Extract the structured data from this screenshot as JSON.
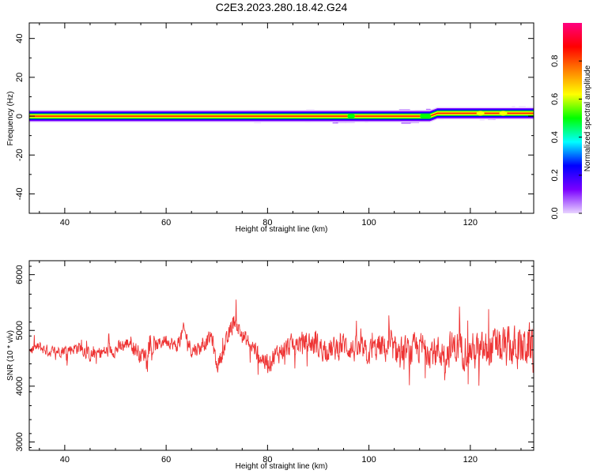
{
  "title": "C2E3.2023.280.18.42.G24",
  "chart_data": [
    {
      "type": "heatmap",
      "xlabel": "Height of straight line (km)",
      "ylabel": "Frequency (Hz)",
      "xlim": [
        33,
        132.5
      ],
      "ylim": [
        -50,
        48
      ],
      "xticks": [
        40,
        60,
        80,
        100,
        120
      ],
      "yticks": [
        -40,
        -20,
        0,
        20,
        40
      ],
      "grid": false,
      "colorbar": {
        "label": "Normalized spectral amplitude",
        "range": [
          0,
          1
        ],
        "ticks": [
          0.0,
          0.2,
          0.4,
          0.6,
          0.8
        ],
        "colormap": [
          "#e8d4ff",
          "#7a00ff",
          "#0000ff",
          "#00ffff",
          "#00ff00",
          "#ffff00",
          "#ff8000",
          "#ff0000",
          "#ff0080"
        ]
      },
      "ridge": {
        "description_points": [
          {
            "x": 33,
            "y": 0
          },
          {
            "x": 112,
            "y": 0
          },
          {
            "x": 113.5,
            "y": 1.5
          },
          {
            "x": 132.5,
            "y": 1.5
          }
        ]
      },
      "noise_regions": [
        {
          "x": [
            76,
            80
          ],
          "level": 0.25
        },
        {
          "x": [
            86,
            90
          ],
          "level": 0.2
        },
        {
          "x": [
            92,
            100
          ],
          "level": 0.55
        },
        {
          "x": [
            107,
            114
          ],
          "level": 0.6
        },
        {
          "x": [
            118,
            132.5
          ],
          "level": 0.35
        }
      ]
    },
    {
      "type": "line",
      "xlabel": "Height of straight line (km)",
      "ylabel": "SNR (10 * v/v)",
      "xlim": [
        33,
        132.5
      ],
      "ylim": [
        2850,
        6250
      ],
      "xticks": [
        40,
        60,
        80,
        100,
        120
      ],
      "yticks": [
        3000,
        4000,
        5000,
        6000
      ],
      "grid": false,
      "series": [
        {
          "color": "#ee3333",
          "x": [
            33,
            35,
            37,
            40,
            43,
            45,
            47,
            50,
            53,
            55,
            57,
            60,
            62,
            63.5,
            65,
            67,
            69,
            70,
            72,
            73.5,
            75,
            77,
            79,
            80,
            82,
            85,
            88,
            90,
            93,
            95,
            97,
            100,
            102,
            105,
            108,
            110,
            112,
            115,
            117,
            120,
            122,
            125,
            127,
            130,
            132.5
          ],
          "mean": [
            4650,
            4700,
            4620,
            4650,
            4700,
            4550,
            4600,
            4650,
            4800,
            4550,
            4650,
            4850,
            4700,
            5000,
            4650,
            4700,
            4900,
            4350,
            4800,
            5200,
            4900,
            4700,
            4500,
            4400,
            4600,
            4750,
            4800,
            4700,
            4650,
            4750,
            4650,
            4600,
            4700,
            4650,
            4600,
            4700,
            4650,
            4600,
            4700,
            4650,
            4600,
            4700,
            4650,
            4700,
            4750
          ],
          "spread": [
            200,
            250,
            250,
            250,
            300,
            300,
            300,
            300,
            350,
            350,
            300,
            300,
            300,
            350,
            350,
            300,
            350,
            350,
            400,
            400,
            400,
            400,
            450,
            450,
            450,
            450,
            500,
            550,
            550,
            550,
            550,
            550,
            600,
            650,
            650,
            700,
            700,
            750,
            800,
            800,
            850,
            850,
            900,
            950,
            950
          ]
        }
      ]
    }
  ]
}
